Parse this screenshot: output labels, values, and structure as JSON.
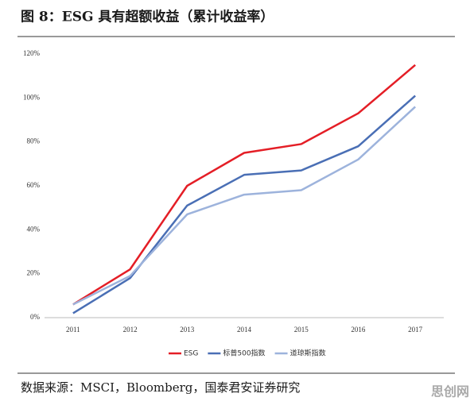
{
  "header": {
    "title": "图 8：ESG 具有超额收益（累计收益率）"
  },
  "chart_data": {
    "type": "line",
    "categories": [
      "2011",
      "2012",
      "2013",
      "2014",
      "2015",
      "2016",
      "2017"
    ],
    "series": [
      {
        "name": "ESG",
        "color": "#e41e26",
        "values": [
          6,
          22,
          60,
          75,
          79,
          93,
          115
        ]
      },
      {
        "name": "标普500指数",
        "color": "#4a6fb5",
        "values": [
          2,
          18,
          51,
          65,
          67,
          78,
          101
        ]
      },
      {
        "name": "道琼斯指数",
        "color": "#9db3dc",
        "values": [
          6,
          19,
          47,
          56,
          58,
          72,
          96
        ]
      }
    ],
    "ylim": [
      0,
      120
    ],
    "yticks": [
      {
        "value": 0,
        "label": "0%"
      },
      {
        "value": 20,
        "label": "20%"
      },
      {
        "value": 40,
        "label": "40%"
      },
      {
        "value": 60,
        "label": "60%"
      },
      {
        "value": 80,
        "label": "80%"
      },
      {
        "value": 100,
        "label": "100%"
      },
      {
        "value": 120,
        "label": "120%"
      }
    ],
    "grid": false,
    "legend": "bottom"
  },
  "footer": {
    "source": "数据来源：MSCI，Bloomberg，国泰君安证券研究",
    "watermark": "思创网"
  }
}
